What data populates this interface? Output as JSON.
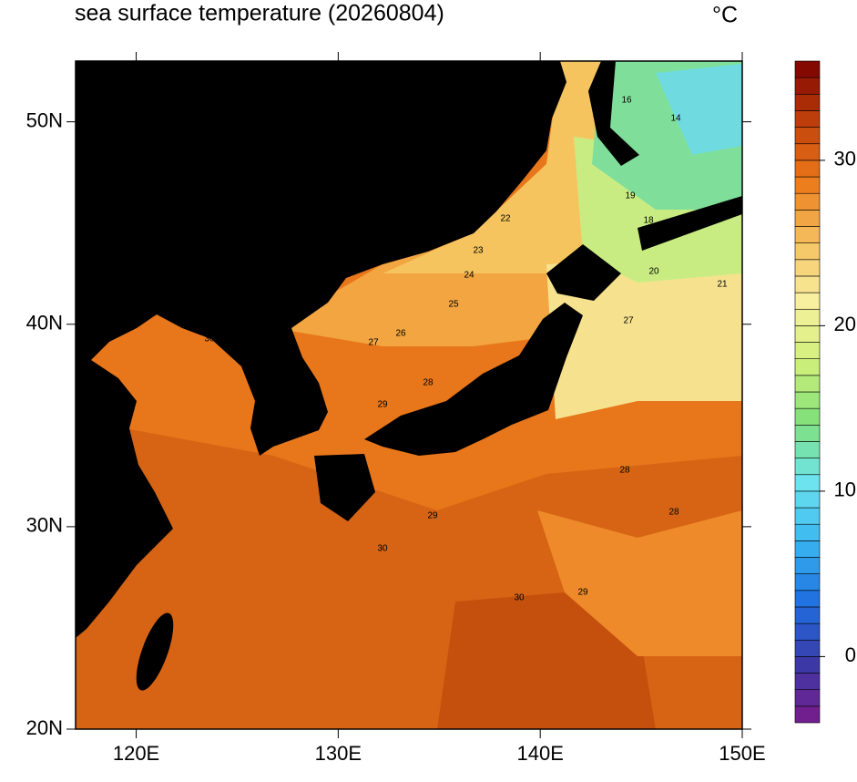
{
  "chart_data": {
    "type": "map",
    "title": "sea surface temperature (20260804)",
    "unit": "°C",
    "xlim": [
      117,
      150
    ],
    "ylim": [
      20,
      53
    ],
    "xticks": [
      {
        "value": 120,
        "label": "120E"
      },
      {
        "value": 130,
        "label": "130E"
      },
      {
        "value": 140,
        "label": "140E"
      },
      {
        "value": 150,
        "label": "150E"
      }
    ],
    "yticks": [
      {
        "value": 20,
        "label": "20N"
      },
      {
        "value": 30,
        "label": "30N"
      },
      {
        "value": 40,
        "label": "40N"
      },
      {
        "value": 50,
        "label": "50N"
      }
    ],
    "colorbar_lim": [
      -4,
      36
    ],
    "colorbar_ticks": [
      0,
      10,
      20,
      30
    ],
    "level_step": 1,
    "colormap": [
      "#7a1a8a",
      "#3a3aa8",
      "#1f6fe0",
      "#39b5f0",
      "#6ee4f0",
      "#7fe07a",
      "#d0f07a",
      "#f8f0a0",
      "#f5c060",
      "#ec7a1a",
      "#c0400a",
      "#7a0000"
    ],
    "contour_labels": [
      "16",
      "14",
      "19",
      "18",
      "22",
      "23",
      "24",
      "25",
      "26",
      "27",
      "28",
      "29",
      "30",
      "20",
      "21",
      "27",
      "28",
      "29",
      "30",
      "30",
      "28",
      "29"
    ]
  }
}
